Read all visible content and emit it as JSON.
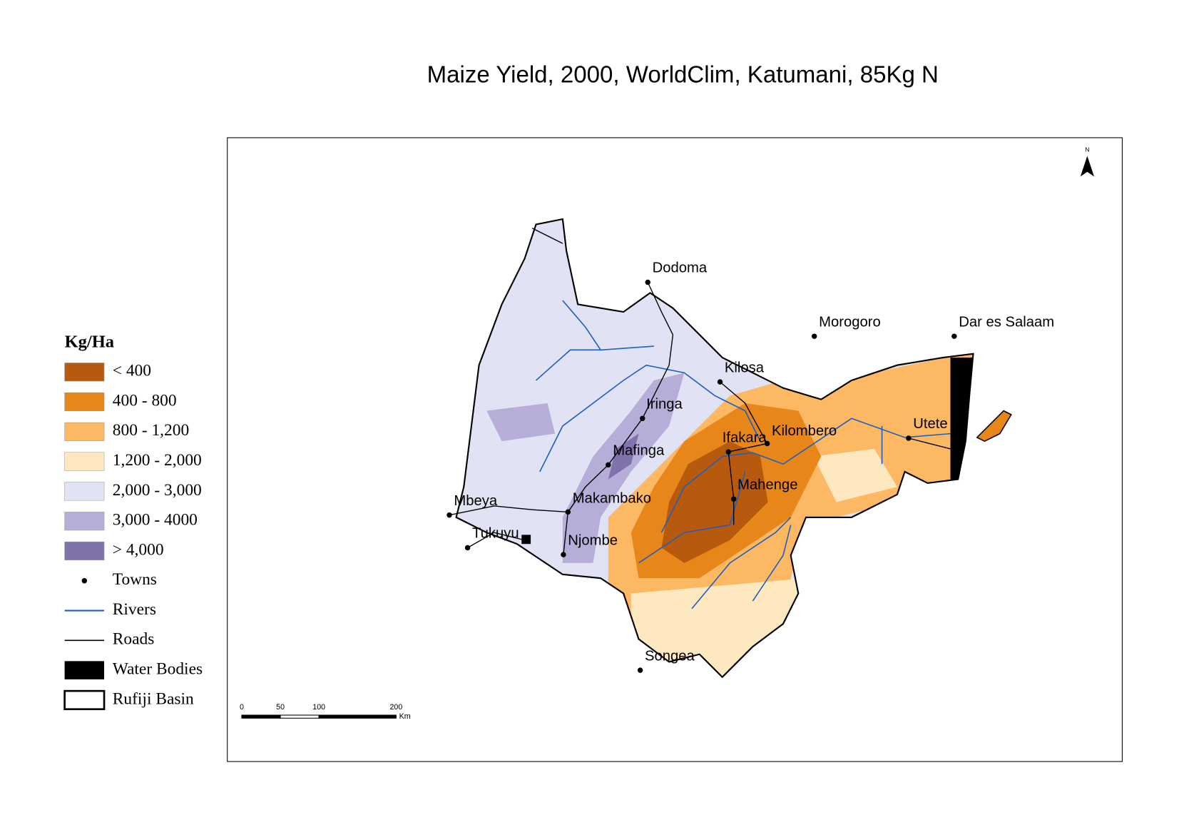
{
  "title": "Maize Yield, 2000, WorldClim, Katumani, 85Kg N",
  "legend": {
    "title": "Kg/Ha",
    "classes": [
      {
        "label": "< 400",
        "color": "#b85a0d"
      },
      {
        "label": "400 - 800",
        "color": "#e8861a"
      },
      {
        "label": "800 - 1,200",
        "color": "#fdb863"
      },
      {
        "label": "1,200 - 2,000",
        "color": "#fee8c0"
      },
      {
        "label": "2,000 - 3,000",
        "color": "#e2e2f5"
      },
      {
        "label": "3,000 - 4000",
        "color": "#b6aed9"
      },
      {
        "label": "> 4,000",
        "color": "#8073ac"
      }
    ],
    "features": [
      {
        "label": "Towns",
        "color": "#000000"
      },
      {
        "label": "Rivers",
        "color": "#1f5fbf"
      },
      {
        "label": "Roads",
        "color": "#000000"
      },
      {
        "label": "Water Bodies",
        "color": "#000000"
      },
      {
        "label": "Rufiji Basin",
        "color": "#000000"
      }
    ]
  },
  "towns": [
    "Dodoma",
    "Morogoro",
    "Dar es Salaam",
    "Kilosa",
    "Iringa",
    "Ifakara",
    "Kilombero",
    "Utete",
    "Mafinga",
    "Mahenge",
    "Mbeya",
    "Makambako",
    "Tukuyu",
    "Njombe",
    "Songea"
  ],
  "scale_bar": {
    "ticks": [
      0,
      50,
      100,
      200
    ],
    "unit": "Km"
  },
  "north": "N"
}
